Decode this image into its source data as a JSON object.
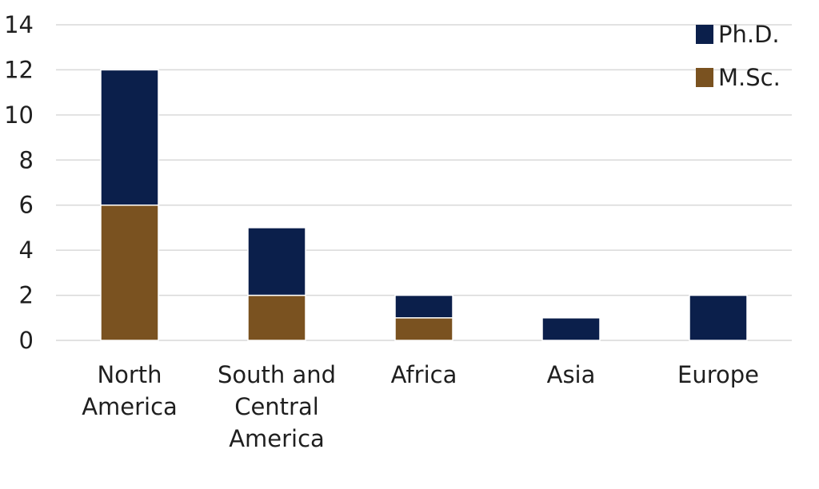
{
  "chart_data": {
    "type": "bar",
    "stacked": true,
    "categories": [
      [
        "North",
        "America"
      ],
      [
        "South and",
        "Central",
        "America"
      ],
      [
        "Africa"
      ],
      [
        "Asia"
      ],
      [
        "Europe"
      ]
    ],
    "series": [
      {
        "name": "M.Sc.",
        "values": [
          6,
          2,
          1,
          0,
          0
        ],
        "color": "#7a5220"
      },
      {
        "name": "Ph.D.",
        "values": [
          6,
          3,
          1,
          1,
          2
        ],
        "color": "#0b1f4b"
      }
    ],
    "ylim": [
      0,
      14
    ],
    "yticks": [
      0,
      2,
      4,
      6,
      8,
      10,
      12,
      14
    ],
    "grid": true,
    "legend": {
      "placement": "top-right",
      "order": [
        "Ph.D.",
        "M.Sc."
      ]
    }
  }
}
